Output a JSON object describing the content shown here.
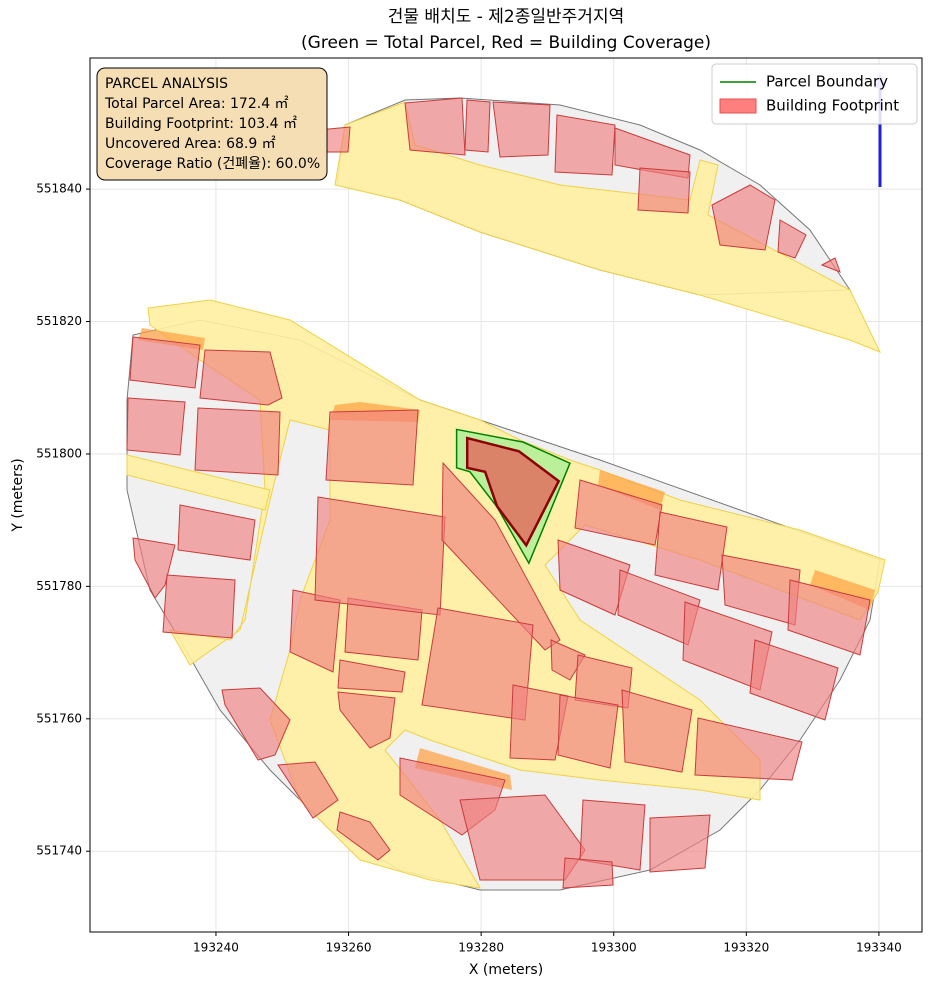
{
  "chart_data": {
    "type": "site-plan",
    "title": "건물 배치도 - 제2종일반주거지역",
    "subtitle": "(Green = Total Parcel, Red = Building Coverage)",
    "x_label": "X (meters)",
    "y_label": "Y (meters)",
    "xlim": [
      193221.0,
      193346.5
    ],
    "ylim": [
      551727.8,
      551859.8
    ],
    "xticks": [
      193240,
      193260,
      193280,
      193300,
      193320,
      193340
    ],
    "yticks": [
      551740,
      551760,
      551780,
      551800,
      551820,
      551840
    ],
    "grid": true,
    "legend_position": "upper right",
    "annotation": [
      "PARCEL ANALYSIS",
      "Total Parcel Area: 172.4 ㎡",
      "Building Footprint: 103.4 ㎡",
      "Uncovered Area: 68.9 ㎡",
      "Coverage Ratio (건폐율): 60.0%"
    ],
    "series": [
      {
        "name": "Parcel Boundary",
        "color": "#008000",
        "fill": "#90ee90",
        "x": [
          193276.3,
          193286.3,
          193293.4,
          193287.2,
          193282.4,
          193278.3,
          193276.3
        ],
        "y": [
          551803.7,
          551801.8,
          551798.6,
          551783.5,
          551792.0,
          551797.3,
          551797.9
        ]
      },
      {
        "name": "Building Footprint",
        "color": "#ff7f7f",
        "edge": "#8b0000",
        "fill": "#e07060",
        "x": [
          193277.9,
          193285.7,
          193291.7,
          193286.8,
          193282.4,
          193280.6,
          193277.9
        ],
        "y": [
          551802.4,
          551800.4,
          551795.9,
          551786.2,
          551792.1,
          551797.3,
          551797.9
        ]
      }
    ]
  }
}
